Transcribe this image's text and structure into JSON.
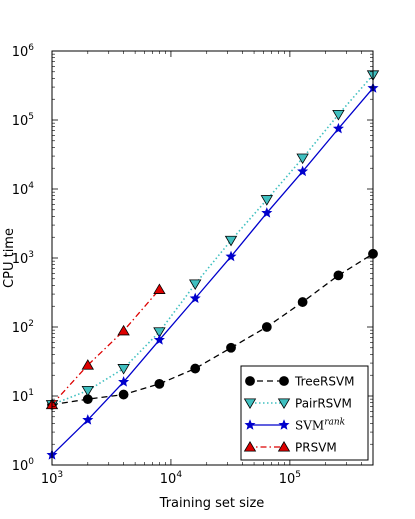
{
  "chart_data": {
    "type": "line",
    "xlabel": "Training set size",
    "ylabel": "CPU time",
    "x_scale": "log",
    "y_scale": "log",
    "xlim": [
      1000,
      500000
    ],
    "ylim": [
      1,
      1000000
    ],
    "x_ticks": [
      {
        "value": 1000,
        "base": "10",
        "exp": "3"
      },
      {
        "value": 10000,
        "base": "10",
        "exp": "4"
      },
      {
        "value": 100000,
        "base": "10",
        "exp": "5"
      }
    ],
    "y_ticks": [
      {
        "value": 1,
        "base": "10",
        "exp": "0"
      },
      {
        "value": 10,
        "base": "10",
        "exp": "1"
      },
      {
        "value": 100,
        "base": "10",
        "exp": "2"
      },
      {
        "value": 1000,
        "base": "10",
        "exp": "3"
      },
      {
        "value": 10000,
        "base": "10",
        "exp": "4"
      },
      {
        "value": 100000,
        "base": "10",
        "exp": "5"
      },
      {
        "value": 1000000,
        "base": "10",
        "exp": "6"
      }
    ],
    "grid": false,
    "legend_position": "lower-right",
    "series": [
      {
        "name": "TreeRSVM",
        "color": "#000000",
        "marker": "circle",
        "line": "dashed",
        "x": [
          1000,
          2000,
          4000,
          8000,
          16000,
          32000,
          64000,
          128000,
          256000,
          500000
        ],
        "y": [
          7.5,
          9,
          10.5,
          15,
          25,
          50,
          100,
          230,
          560,
          1150
        ]
      },
      {
        "name": "PairRSVM",
        "color": "#40c0c0",
        "marker": "triangle-down",
        "line": "dotted",
        "x": [
          1000,
          2000,
          4000,
          8000,
          16000,
          32000,
          64000,
          128000,
          256000,
          500000
        ],
        "y": [
          7.5,
          12,
          25,
          85,
          420,
          1800,
          7000,
          28000,
          120000,
          450000
        ]
      },
      {
        "name_base": "SVM",
        "name_sup": "rank",
        "color": "#0000cc",
        "marker": "star",
        "line": "solid",
        "x": [
          1000,
          2000,
          4000,
          8000,
          16000,
          32000,
          64000,
          128000,
          256000,
          500000
        ],
        "y": [
          1.4,
          4.5,
          16,
          65,
          260,
          1050,
          4500,
          18000,
          75000,
          290000
        ]
      },
      {
        "name": "PRSVM",
        "color": "#dd0000",
        "marker": "triangle-up",
        "line": "dashdot",
        "x": [
          1000,
          2000,
          4000,
          8000
        ],
        "y": [
          7.5,
          28,
          88,
          350
        ]
      }
    ]
  }
}
